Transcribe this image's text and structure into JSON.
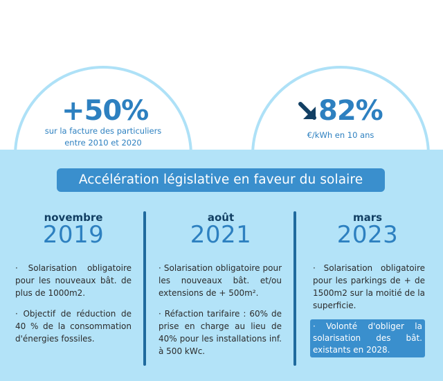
{
  "stats": {
    "left": {
      "value": "+50%",
      "caption_line1": "sur la facture des particuliers",
      "caption_line2": "entre 2010 et 2020"
    },
    "right": {
      "arrow_icon": "arrow-down-right-icon",
      "value": "82%",
      "caption": "€/kWh en 10 ans"
    }
  },
  "headline": "Accélération législative en faveur du solaire",
  "colors": {
    "band": "#b3e3f8",
    "accent": "#3a8fcd",
    "dark": "#123f63",
    "year": "#2d80c0"
  },
  "timeline": [
    {
      "month": "novembre",
      "year": "2019",
      "bullets": [
        "· Solarisation obligatoire pour les nouveaux bât. de plus de 1000m2.",
        "· Objectif de réduction de 40 % de la consommation d'énergies fossiles."
      ]
    },
    {
      "month": "août",
      "year": "2021",
      "bullets": [
        "· Solarisation obligatoire pour les nouveaux bât. et/ou extensions de + 500m².",
        "· Réfaction tarifaire : 60% de prise en charge au lieu de 40% pour les installations inf. à 500 kWc."
      ]
    },
    {
      "month": "mars",
      "year": "2023",
      "bullets": [
        "· Solarisation obligatoire pour les parkings de + de 1500m2 sur la moitié de la superficie."
      ],
      "highlight": "· Volonté d'obliger la solarisation des bât. existants en 2028."
    }
  ]
}
